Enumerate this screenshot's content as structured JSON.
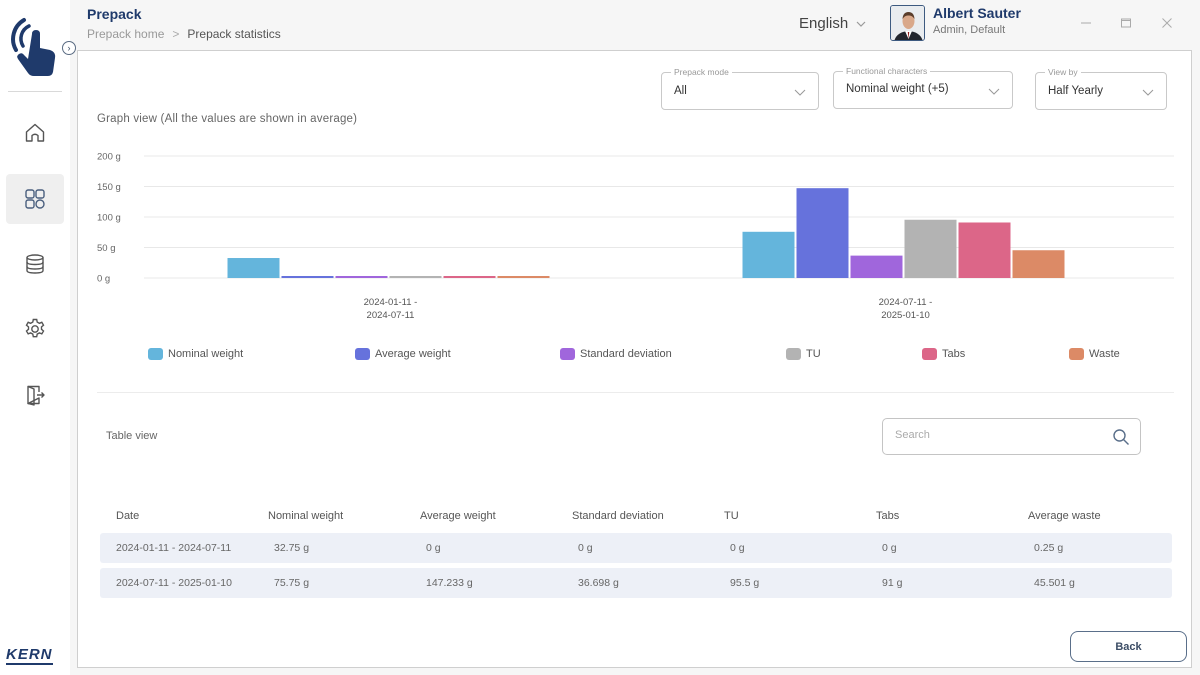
{
  "header": {
    "title": "Prepack",
    "breadcrumb": [
      "Prepack home",
      "Prepack statistics"
    ],
    "language": "English",
    "user": {
      "name": "Albert Sauter",
      "role": "Admin, Default"
    }
  },
  "sidebar": {
    "items": [
      {
        "name": "home",
        "icon": "home-icon",
        "active": false
      },
      {
        "name": "dashboard",
        "icon": "grid-icon",
        "active": true
      },
      {
        "name": "database",
        "icon": "database-icon",
        "active": false
      },
      {
        "name": "settings",
        "icon": "gear-icon",
        "active": false
      },
      {
        "name": "logout",
        "icon": "logout-icon",
        "active": false
      }
    ],
    "brand": "KERN"
  },
  "filters": {
    "prepack_mode": {
      "label": "Prepack mode",
      "value": "All"
    },
    "functional_characters": {
      "label": "Functional characters",
      "value": "Nominal weight (+5)"
    },
    "view_by": {
      "label": "View by",
      "value": "Half Yearly"
    }
  },
  "graph": {
    "title": "Graph view (All the values are shown in average)"
  },
  "chart_data": {
    "type": "bar",
    "title": "Graph view (All the values are shown in average)",
    "xlabel": "",
    "ylabel": "",
    "y_unit": "g",
    "ylim": [
      0,
      200
    ],
    "yticks": [
      0,
      50,
      100,
      150,
      200
    ],
    "ytick_labels": [
      "0 g",
      "50 g",
      "100 g",
      "150 g",
      "200 g"
    ],
    "grid": true,
    "legend_position": "bottom",
    "categories": [
      [
        "2024-01-11 -",
        "2024-07-11"
      ],
      [
        "2024-07-11 -",
        "2025-01-10"
      ]
    ],
    "series": [
      {
        "name": "Nominal weight",
        "color": "#64b5dc",
        "values": [
          32.75,
          75.75
        ]
      },
      {
        "name": "Average weight",
        "color": "#6672dc",
        "values": [
          0,
          147.233
        ]
      },
      {
        "name": "Standard deviation",
        "color": "#a066dc",
        "values": [
          0,
          36.698
        ]
      },
      {
        "name": "TU",
        "color": "#b3b3b3",
        "values": [
          0,
          95.5
        ]
      },
      {
        "name": "Tabs",
        "color": "#dc6688",
        "values": [
          0,
          91
        ]
      },
      {
        "name": "Waste",
        "color": "#dc8a66",
        "values": [
          0.25,
          45.501
        ]
      }
    ]
  },
  "table": {
    "title": "Table view",
    "search_placeholder": "Search",
    "search_value": "",
    "columns": [
      "Date",
      "Nominal weight",
      "Average weight",
      "Standard deviation",
      "TU",
      "Tabs",
      "Average waste"
    ],
    "rows": [
      [
        "2024-01-11 - 2024-07-11",
        "32.75 g",
        "0 g",
        "0 g",
        "0 g",
        "0 g",
        "0.25 g"
      ],
      [
        "2024-07-11 - 2025-01-10",
        "75.75 g",
        "147.233 g",
        "36.698 g",
        "95.5 g",
        "91 g",
        "45.501 g"
      ]
    ]
  },
  "actions": {
    "back_label": "Back"
  }
}
